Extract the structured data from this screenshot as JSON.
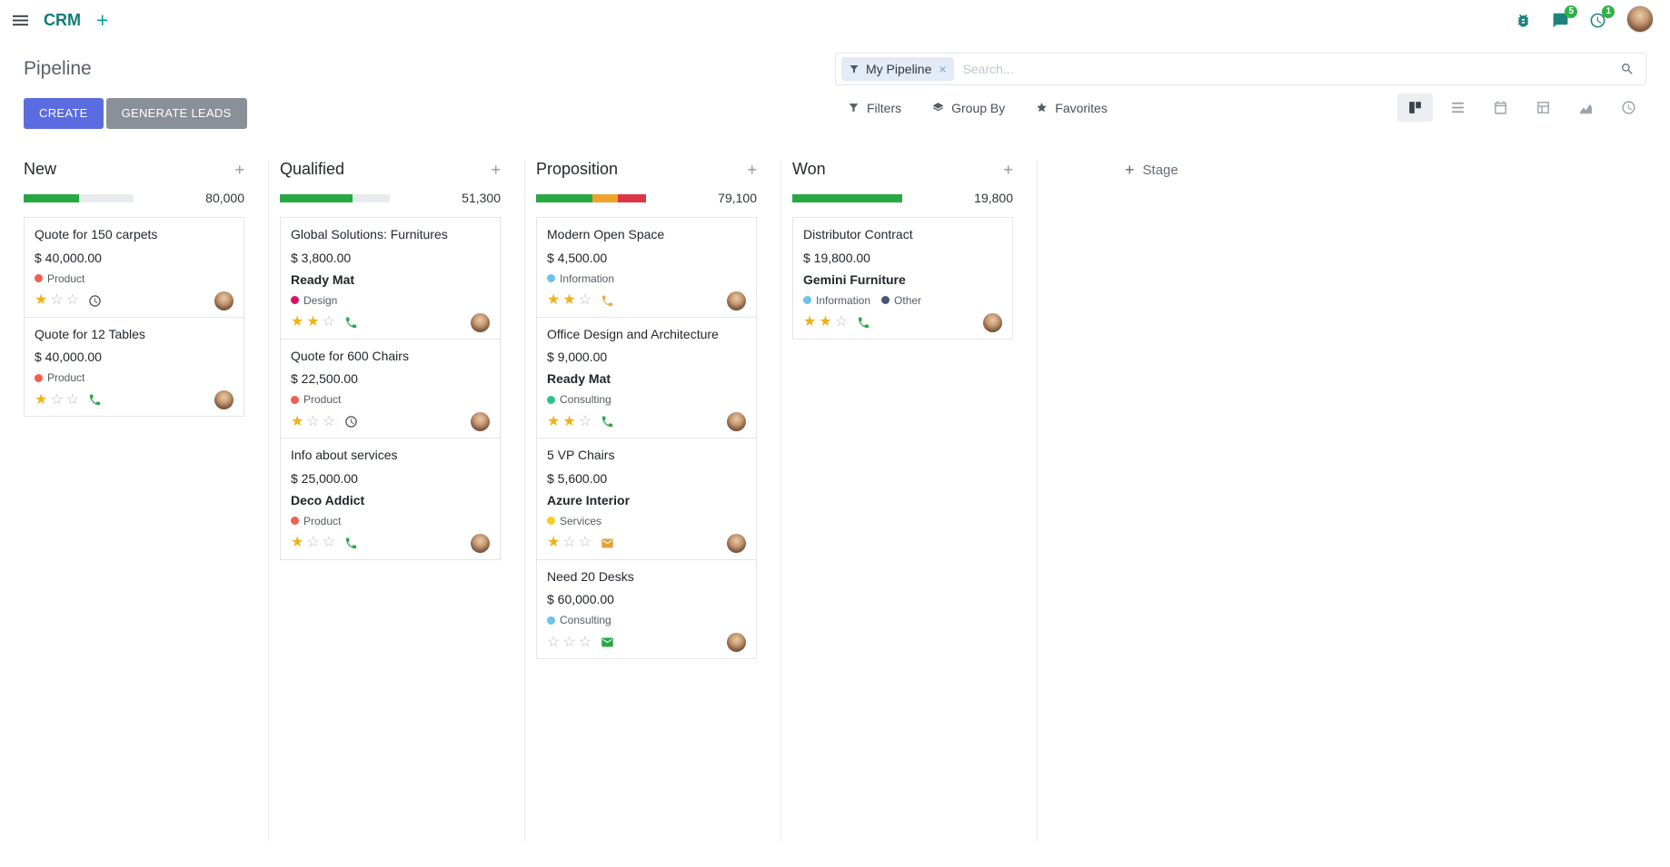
{
  "topbar": {
    "app_name": "CRM",
    "messages_badge": "5",
    "activities_badge": "1"
  },
  "control_panel": {
    "title": "Pipeline",
    "create_label": "CREATE",
    "generate_leads_label": "GENERATE LEADS",
    "search": {
      "facet_label": "My Pipeline",
      "remove_glyph": "×",
      "placeholder": "Search..."
    },
    "menus": [
      {
        "label": "Filters",
        "icon": "filter"
      },
      {
        "label": "Group By",
        "icon": "layers"
      },
      {
        "label": "Favorites",
        "icon": "star"
      }
    ]
  },
  "view_switcher": [
    {
      "name": "kanban",
      "active": true
    },
    {
      "name": "list",
      "active": false
    },
    {
      "name": "calendar",
      "active": false
    },
    {
      "name": "pivot",
      "active": false
    },
    {
      "name": "graph",
      "active": false
    },
    {
      "name": "activity",
      "active": false
    }
  ],
  "board": {
    "add_stage_label": "Stage",
    "columns": [
      {
        "name": "New",
        "total": "80,000",
        "progress": [
          {
            "color": "#28a745",
            "pct": 50
          }
        ],
        "cards": [
          {
            "title": "Quote for 150 carpets",
            "amount": "$ 40,000.00",
            "partner": "",
            "tags": [
              {
                "label": "Product",
                "color": "#f06050"
              }
            ],
            "stars": 1,
            "activity": {
              "icon": "clock",
              "color": "#495057"
            }
          },
          {
            "title": "Quote for 12 Tables",
            "amount": "$ 40,000.00",
            "partner": "",
            "tags": [
              {
                "label": "Product",
                "color": "#f06050"
              }
            ],
            "stars": 1,
            "activity": {
              "icon": "phone",
              "color": "#28a745"
            }
          }
        ]
      },
      {
        "name": "Qualified",
        "total": "51,300",
        "progress": [
          {
            "color": "#28a745",
            "pct": 66
          }
        ],
        "cards": [
          {
            "title": "Global Solutions: Furnitures",
            "amount": "$ 3,800.00",
            "partner": "Ready Mat",
            "tags": [
              {
                "label": "Design",
                "color": "#d6145f"
              }
            ],
            "stars": 2,
            "activity": {
              "icon": "phone",
              "color": "#28a745"
            }
          },
          {
            "title": "Quote for 600 Chairs",
            "amount": "$ 22,500.00",
            "partner": "",
            "tags": [
              {
                "label": "Product",
                "color": "#f06050"
              }
            ],
            "stars": 1,
            "activity": {
              "icon": "clock",
              "color": "#495057"
            }
          },
          {
            "title": "Info about services",
            "amount": "$ 25,000.00",
            "partner": "Deco Addict",
            "tags": [
              {
                "label": "Product",
                "color": "#f06050"
              }
            ],
            "stars": 1,
            "activity": {
              "icon": "phone",
              "color": "#28a745"
            }
          }
        ]
      },
      {
        "name": "Proposition",
        "total": "79,100",
        "progress": [
          {
            "color": "#28a745",
            "pct": 51
          },
          {
            "color": "#f0a32a",
            "pct": 23
          },
          {
            "color": "#dc3545",
            "pct": 26
          }
        ],
        "cards": [
          {
            "title": "Modern Open Space",
            "amount": "$ 4,500.00",
            "partner": "",
            "tags": [
              {
                "label": "Information",
                "color": "#6cc1ed"
              }
            ],
            "stars": 2,
            "activity": {
              "icon": "phone",
              "color": "#f0ad4e"
            }
          },
          {
            "title": "Office Design and Architecture",
            "amount": "$ 9,000.00",
            "partner": "Ready Mat",
            "tags": [
              {
                "label": "Consulting",
                "color": "#30c381"
              }
            ],
            "stars": 2,
            "activity": {
              "icon": "phone",
              "color": "#28a745"
            }
          },
          {
            "title": "5 VP Chairs",
            "amount": "$ 5,600.00",
            "partner": "Azure Interior",
            "tags": [
              {
                "label": "Services",
                "color": "#f7cd1f"
              }
            ],
            "stars": 1,
            "activity": {
              "icon": "envelope",
              "color": "#e2a33e"
            }
          },
          {
            "title": "Need 20 Desks",
            "amount": "$ 60,000.00",
            "partner": "",
            "tags": [
              {
                "label": "Consulting",
                "color": "#6cc1ed"
              }
            ],
            "stars": 0,
            "activity": {
              "icon": "envelope",
              "color": "#28a745"
            }
          }
        ]
      },
      {
        "name": "Won",
        "total": "19,800",
        "progress": [
          {
            "color": "#28a745",
            "pct": 100
          }
        ],
        "cards": [
          {
            "title": "Distributor Contract",
            "amount": "$ 19,800.00",
            "partner": "Gemini Furniture",
            "tags": [
              {
                "label": "Information",
                "color": "#6cc1ed"
              },
              {
                "label": "Other",
                "color": "#475577"
              }
            ],
            "stars": 2,
            "activity": {
              "icon": "phone",
              "color": "#28a745"
            }
          }
        ]
      }
    ]
  }
}
